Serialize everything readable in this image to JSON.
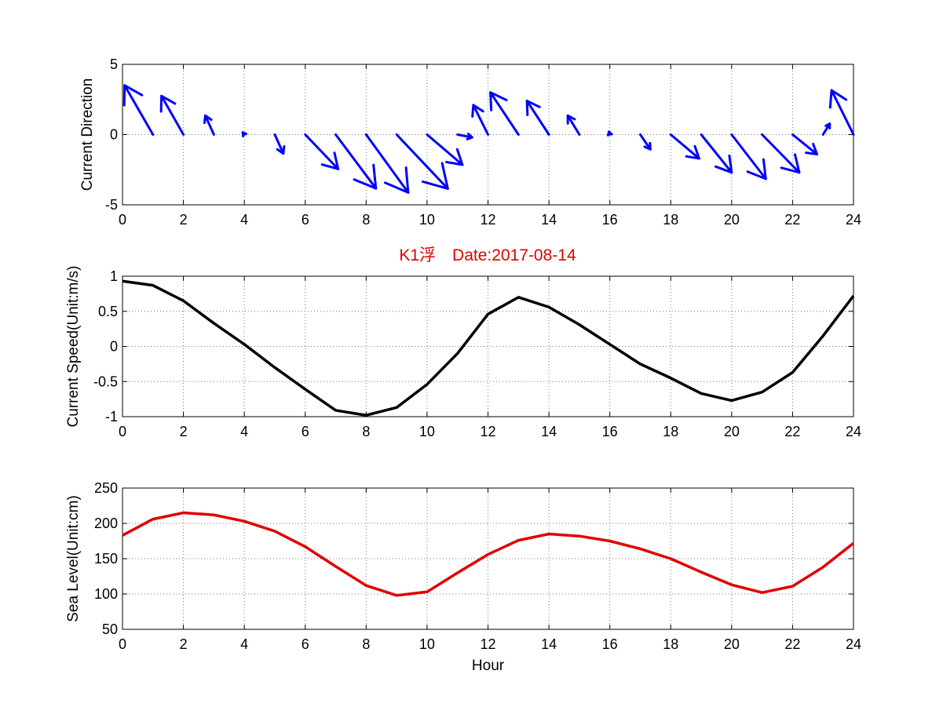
{
  "title": "K1浮　Date:2017-08-14",
  "colors": {
    "arrows": "#0000ff",
    "speed": "#000000",
    "sea": "#e00000",
    "title": "#e00000"
  },
  "chart_data": [
    {
      "type": "quiver",
      "ylabel": "Current Direction",
      "xlabel": "",
      "xlim": [
        0,
        24
      ],
      "ylim": [
        -5,
        5
      ],
      "xticks": [
        "0",
        "2",
        "4",
        "6",
        "8",
        "10",
        "12",
        "14",
        "16",
        "18",
        "20",
        "22",
        "24"
      ],
      "yticks": [
        "-5",
        "0",
        "5"
      ],
      "grid": true,
      "x": [
        1,
        2,
        3,
        4,
        5,
        6,
        7,
        8,
        9,
        10,
        11,
        12,
        13,
        14,
        15,
        16,
        17,
        18,
        19,
        20,
        21,
        22,
        23,
        24
      ],
      "u": [
        -0.93,
        -0.72,
        -0.28,
        -0.05,
        0.28,
        1.08,
        1.32,
        1.38,
        1.68,
        1.16,
        0.48,
        -0.48,
        -0.92,
        -0.72,
        -0.38,
        -0.03,
        0.33,
        0.93,
        1.0,
        1.12,
        1.22,
        0.8,
        0.22,
        -0.72
      ],
      "v": [
        3.5,
        2.75,
        1.35,
        0.15,
        -1.35,
        -2.45,
        -3.83,
        -4.13,
        -3.85,
        -2.15,
        -0.2,
        2.1,
        3.0,
        2.4,
        1.35,
        0.2,
        -1.05,
        -1.7,
        -2.7,
        -3.15,
        -2.7,
        -1.4,
        0.77,
        3.15
      ]
    },
    {
      "type": "line",
      "ylabel": "Current Speed(Unit:m/s)",
      "xlabel": "",
      "xlim": [
        0,
        24
      ],
      "ylim": [
        -1,
        1
      ],
      "xticks": [
        "0",
        "2",
        "4",
        "6",
        "8",
        "10",
        "12",
        "14",
        "16",
        "18",
        "20",
        "22",
        "24"
      ],
      "yticks": [
        "-1",
        "-0.5",
        "0",
        "0.5",
        "1"
      ],
      "grid": true,
      "x": [
        0,
        1,
        2,
        3,
        4,
        5,
        6,
        7,
        8,
        9,
        10,
        11,
        12,
        13,
        14,
        15,
        16,
        17,
        18,
        19,
        20,
        21,
        22,
        23,
        24
      ],
      "series": [
        {
          "values": [
            0.93,
            0.87,
            0.65,
            0.33,
            0.03,
            -0.3,
            -0.61,
            -0.91,
            -0.98,
            -0.87,
            -0.54,
            -0.1,
            0.46,
            0.7,
            0.56,
            0.31,
            0.03,
            -0.25,
            -0.45,
            -0.67,
            -0.77,
            -0.65,
            -0.37,
            0.15,
            0.72
          ]
        }
      ]
    },
    {
      "type": "line",
      "ylabel": "Sea Level(Unit:cm)",
      "xlabel": "Hour",
      "xlim": [
        0,
        24
      ],
      "ylim": [
        50,
        250
      ],
      "xticks": [
        "0",
        "2",
        "4",
        "6",
        "8",
        "10",
        "12",
        "14",
        "16",
        "18",
        "20",
        "22",
        "24"
      ],
      "yticks": [
        "50",
        "100",
        "150",
        "200",
        "250"
      ],
      "grid": true,
      "x": [
        0,
        1,
        2,
        3,
        4,
        5,
        6,
        7,
        8,
        9,
        10,
        11,
        12,
        13,
        14,
        15,
        16,
        17,
        18,
        19,
        20,
        21,
        22,
        23,
        24
      ],
      "series": [
        {
          "values": [
            183,
            206,
            215,
            212,
            203,
            189,
            167,
            139,
            112,
            98,
            103,
            130,
            156,
            176,
            185,
            182,
            175,
            164,
            150,
            131,
            113,
            102,
            111,
            138,
            172
          ]
        }
      ]
    }
  ]
}
